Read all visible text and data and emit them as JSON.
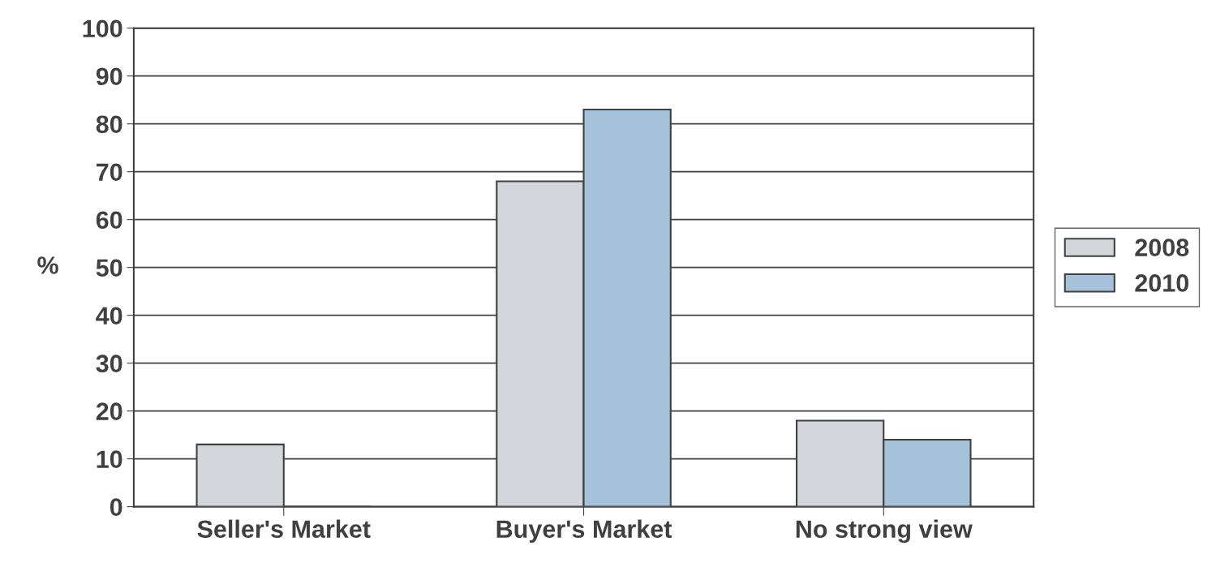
{
  "chart_data": {
    "type": "bar",
    "ylabel": "%",
    "categories": [
      "Seller's Market",
      "Buyer's Market",
      "No strong view"
    ],
    "series": [
      {
        "name": "2008",
        "color": "#d3d7dc",
        "values": [
          13,
          68,
          18
        ]
      },
      {
        "name": "2010",
        "color": "#a6c2da",
        "values": [
          0,
          83,
          14
        ]
      }
    ],
    "ylim": [
      0,
      100
    ],
    "yticks": [
      0,
      10,
      20,
      30,
      40,
      50,
      60,
      70,
      80,
      90,
      100
    ],
    "grid": "y",
    "legend": "right"
  }
}
